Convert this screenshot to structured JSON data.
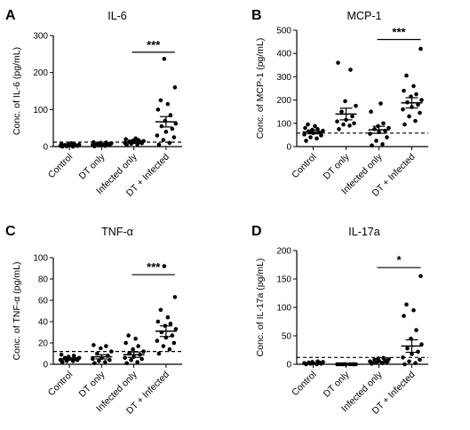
{
  "figure": {
    "panel_count": 4
  },
  "chart_data": [
    {
      "panel": "A",
      "type": "scatter",
      "title": "IL-6",
      "ylabel": "Conc. of IL-6 (pg/mL)",
      "ylim": [
        0,
        300
      ],
      "yticks": [
        0,
        100,
        200,
        300
      ],
      "categories": [
        "Control",
        "DT only",
        "Infected only",
        "DT + Infected"
      ],
      "threshold": 12,
      "threshold_style": "dashed",
      "significance": [
        {
          "from": 2,
          "to": 3,
          "label": "***",
          "y": 255
        }
      ],
      "groups": [
        {
          "category": "Control",
          "mean": 4,
          "sem": 1.5,
          "points": [
            0,
            0,
            1,
            2,
            2,
            3,
            4,
            4,
            5,
            6,
            7,
            8,
            9
          ]
        },
        {
          "category": "DT only",
          "mean": 6,
          "sem": 2,
          "points": [
            1,
            2,
            3,
            4,
            5,
            6,
            7,
            8,
            9,
            10,
            11,
            12
          ]
        },
        {
          "category": "Infected only",
          "mean": 12,
          "sem": 3,
          "points": [
            4,
            6,
            8,
            9,
            10,
            12,
            13,
            14,
            15,
            16,
            18,
            20,
            22
          ]
        },
        {
          "category": "DT + Infected",
          "mean": 67,
          "sem": 14,
          "points": [
            5,
            10,
            18,
            25,
            30,
            40,
            48,
            55,
            62,
            70,
            85,
            100,
            115,
            125,
            160,
            237
          ]
        }
      ]
    },
    {
      "panel": "B",
      "type": "scatter",
      "title": "MCP-1",
      "ylabel": "Conc. of MCP-1 (pg/mL)",
      "ylim": [
        0,
        500
      ],
      "yticks": [
        0,
        100,
        200,
        300,
        400,
        500
      ],
      "categories": [
        "Control",
        "DT only",
        "Infected only",
        "DT + Infected"
      ],
      "threshold": 58,
      "threshold_style": "dashed",
      "significance": [
        {
          "from": 2,
          "to": 3,
          "label": "***",
          "y": 460
        }
      ],
      "groups": [
        {
          "category": "Control",
          "mean": 63,
          "sem": 8,
          "points": [
            25,
            35,
            40,
            48,
            52,
            58,
            60,
            65,
            68,
            72,
            75,
            80,
            88,
            95
          ]
        },
        {
          "category": "DT only",
          "mean": 140,
          "sem": 25,
          "points": [
            75,
            90,
            95,
            100,
            108,
            115,
            130,
            150,
            175,
            195,
            330,
            360
          ]
        },
        {
          "category": "Infected only",
          "mean": 72,
          "sem": 15,
          "points": [
            5,
            10,
            25,
            40,
            55,
            62,
            68,
            75,
            80,
            88,
            100,
            150,
            185
          ]
        },
        {
          "category": "DT + Infected",
          "mean": 188,
          "sem": 22,
          "points": [
            95,
            110,
            130,
            145,
            160,
            170,
            180,
            190,
            200,
            215,
            225,
            240,
            260,
            305,
            420
          ]
        }
      ]
    },
    {
      "panel": "C",
      "type": "scatter",
      "title": "TNF-α",
      "ylabel": "Conc. of TNF-α (pg/mL)",
      "ylim": [
        0,
        100
      ],
      "yticks": [
        0,
        20,
        40,
        60,
        80,
        100
      ],
      "categories": [
        "Control",
        "DT only",
        "Infected only",
        "DT + Infected"
      ],
      "threshold": 12,
      "threshold_style": "dashed",
      "significance": [
        {
          "from": 2,
          "to": 3,
          "label": "***",
          "y": 84
        }
      ],
      "groups": [
        {
          "category": "Control",
          "mean": 5,
          "sem": 1,
          "points": [
            2,
            3,
            3,
            4,
            4,
            5,
            5,
            6,
            6,
            7,
            8,
            9
          ]
        },
        {
          "category": "DT only",
          "mean": 7,
          "sem": 2,
          "points": [
            1,
            2,
            3,
            4,
            5,
            6,
            8,
            10,
            12,
            15,
            17,
            18
          ]
        },
        {
          "category": "Infected only",
          "mean": 9,
          "sem": 2.5,
          "points": [
            1,
            2,
            4,
            5,
            6,
            7,
            9,
            10,
            12,
            14,
            17,
            20,
            24,
            27
          ]
        },
        {
          "category": "DT + Infected",
          "mean": 31,
          "sem": 5,
          "points": [
            10,
            14,
            17,
            20,
            22,
            25,
            27,
            30,
            33,
            36,
            38,
            40,
            44,
            51,
            63,
            92
          ]
        }
      ]
    },
    {
      "panel": "D",
      "type": "scatter",
      "title": "IL-17a",
      "ylabel": "Conc. of IL-17a (pg/mL)",
      "ylim": [
        0,
        200
      ],
      "yticks": [
        0,
        50,
        100,
        150,
        200
      ],
      "categories": [
        "Control",
        "DT only",
        "Infected only",
        "DT + Infected"
      ],
      "threshold": 12,
      "threshold_style": "dashed",
      "significance": [
        {
          "from": 2,
          "to": 3,
          "label": "*",
          "y": 170
        }
      ],
      "groups": [
        {
          "category": "Control",
          "mean": 2,
          "sem": 0.5,
          "points": [
            0,
            0,
            1,
            1,
            2,
            2,
            3,
            3,
            4,
            4,
            5
          ]
        },
        {
          "category": "DT only",
          "mean": 0,
          "sem": 0,
          "points": [
            0,
            0,
            0,
            0,
            0,
            0,
            0,
            0,
            0,
            0
          ]
        },
        {
          "category": "Infected only",
          "mean": 4,
          "sem": 1,
          "points": [
            1,
            2,
            3,
            4,
            5,
            6,
            7,
            8,
            9,
            10,
            11
          ]
        },
        {
          "category": "DT + Infected",
          "mean": 32,
          "sem": 11,
          "points": [
            0,
            2,
            5,
            8,
            12,
            18,
            22,
            28,
            35,
            45,
            60,
            85,
            95,
            105,
            155
          ]
        }
      ]
    }
  ]
}
